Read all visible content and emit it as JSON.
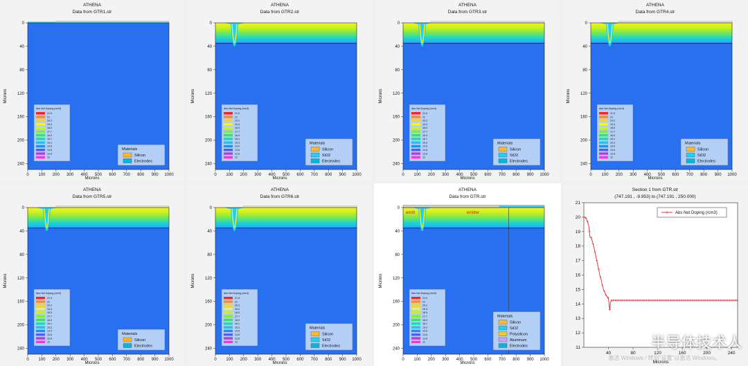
{
  "watermark": {
    "text": "半导体技术人",
    "sub": "激活 Windows / 转到\"设置\"以激活 Windows。"
  },
  "colors": {
    "bg": "#2970f0",
    "oxide": "#23d0f2",
    "electrode": "#0ab6d8",
    "legend_bg": "#b4cff5"
  },
  "doping_legend": {
    "title": "Abs Net Doping (/cm3)",
    "levels": [
      "21.9",
      "21",
      "20.2",
      "19.4",
      "18.5",
      "17.7",
      "16.9",
      "16.1",
      "15.3",
      "14.5",
      "13.6",
      "12.8",
      "12"
    ],
    "colors": [
      "#ff2020",
      "#ff8a1e",
      "#ffd21e",
      "#f6f51e",
      "#c9f21e",
      "#82ee32",
      "#32e468",
      "#1ed8b8",
      "#1ec4ea",
      "#1e92f0",
      "#5a5af0",
      "#b43cd8",
      "#ff32d8"
    ]
  },
  "contour_panels": [
    {
      "id": "gtr1",
      "heading": "ATHENA",
      "subtitle": "Data from GTR1.str",
      "xlabel": "Microns",
      "ylabel": "Microns",
      "xticks": [
        0,
        100,
        200,
        300,
        400,
        500,
        600,
        700,
        800,
        900,
        1000
      ],
      "yticks": [
        0,
        40,
        80,
        120,
        160,
        200,
        240
      ],
      "xlim": [
        0,
        1000
      ],
      "ylim": [
        0,
        250
      ],
      "layer": "none",
      "trench": false,
      "electrodes": [
        "thin"
      ],
      "materials_title": "Materials",
      "materials": [
        {
          "label": "Silicon",
          "color": "#ffb82a"
        },
        {
          "label": "Electrodes",
          "color": "#0ab6d8"
        }
      ],
      "annotations": []
    },
    {
      "id": "gtr2",
      "heading": "ATHENA",
      "subtitle": "Data from GTR2.str",
      "xlabel": "Microns",
      "ylabel": "Microns",
      "xticks": [
        0,
        100,
        200,
        300,
        400,
        500,
        600,
        700,
        800,
        900,
        1000
      ],
      "yticks": [
        0,
        40,
        80,
        120,
        160,
        200,
        240
      ],
      "xlim": [
        0,
        1000
      ],
      "ylim": [
        0,
        250
      ],
      "layer": "deep",
      "trench": true,
      "electrodes": [],
      "materials_title": "Materials",
      "materials": [
        {
          "label": "Silicon",
          "color": "#ffb82a"
        },
        {
          "label": "SiO2",
          "color": "#23d0f2"
        },
        {
          "label": "Electrodes",
          "color": "#0ab6d8"
        }
      ],
      "annotations": []
    },
    {
      "id": "gtr3",
      "heading": "ATHENA",
      "subtitle": "Data from GTR3.str",
      "xlabel": "Microns",
      "ylabel": "Microns",
      "xticks": [
        0,
        100,
        200,
        300,
        400,
        500,
        600,
        700,
        800,
        900,
        1000
      ],
      "yticks": [
        0,
        40,
        80,
        120,
        160,
        200,
        240
      ],
      "xlim": [
        0,
        1000
      ],
      "ylim": [
        0,
        250
      ],
      "layer": "deep",
      "trench": true,
      "electrodes": [
        "thin"
      ],
      "materials_title": "Materials",
      "materials": [
        {
          "label": "Silicon",
          "color": "#ffb82a"
        },
        {
          "label": "SiO2",
          "color": "#23d0f2"
        },
        {
          "label": "Electrodes",
          "color": "#0ab6d8"
        }
      ],
      "annotations": []
    },
    {
      "id": "gtr4",
      "heading": "ATHENA",
      "subtitle": "Data from GTR4.str",
      "xlabel": "Microns",
      "ylabel": "Microns",
      "xticks": [
        0,
        100,
        200,
        300,
        400,
        500,
        600,
        700,
        800,
        900,
        1000
      ],
      "yticks": [
        0,
        40,
        80,
        120,
        160,
        200,
        240
      ],
      "xlim": [
        0,
        1000
      ],
      "ylim": [
        0,
        250
      ],
      "layer": "deep",
      "trench": true,
      "electrodes": [
        "thin"
      ],
      "materials_title": "Materials",
      "materials": [
        {
          "label": "Silicon",
          "color": "#ffb82a"
        },
        {
          "label": "SiO2",
          "color": "#23d0f2"
        },
        {
          "label": "Electrodes",
          "color": "#0ab6d8"
        }
      ],
      "annotations": []
    },
    {
      "id": "gtr5",
      "heading": "ATHENA",
      "subtitle": "Data from GTR5.str",
      "xlabel": "Microns",
      "ylabel": "Microns",
      "xticks": [
        0,
        100,
        200,
        300,
        400,
        500,
        600,
        700,
        800,
        900,
        1000
      ],
      "yticks": [
        0,
        40,
        80,
        120,
        160,
        200,
        240
      ],
      "xlim": [
        0,
        1000
      ],
      "ylim": [
        0,
        250
      ],
      "layer": "deep",
      "trench": true,
      "electrodes": [
        "thin"
      ],
      "materials_title": "Materials",
      "materials": [
        {
          "label": "Silicon",
          "color": "#ffb82a"
        },
        {
          "label": "Electrodes",
          "color": "#0ab6d8"
        }
      ],
      "annotations": []
    },
    {
      "id": "gtr6",
      "heading": "ATHENA",
      "subtitle": "Data from GTR6.str",
      "xlabel": "Microns",
      "ylabel": "Microns",
      "xticks": [
        0,
        100,
        200,
        300,
        400,
        500,
        600,
        700,
        800,
        900,
        1000
      ],
      "yticks": [
        0,
        40,
        80,
        120,
        160,
        200,
        240
      ],
      "xlim": [
        0,
        1000
      ],
      "ylim": [
        0,
        250
      ],
      "layer": "deep",
      "trench": true,
      "electrodes": [
        "thin"
      ],
      "materials_title": "Materials",
      "materials": [
        {
          "label": "Silicon",
          "color": "#ffb82a"
        },
        {
          "label": "SiO2",
          "color": "#23d0f2"
        },
        {
          "label": "Electrodes",
          "color": "#0ab6d8"
        }
      ],
      "annotations": []
    },
    {
      "id": "gtr",
      "heading": "ATHENA",
      "subtitle": "Data from GTR.str",
      "xlabel": "Microns",
      "ylabel": "Microns",
      "xticks": [
        0,
        100,
        200,
        300,
        400,
        500,
        600,
        700,
        800,
        900,
        1000
      ],
      "yticks": [
        0,
        40,
        80,
        120,
        160,
        200,
        240
      ],
      "xlim": [
        0,
        1000
      ],
      "ylim": [
        0,
        250
      ],
      "layer": "deep",
      "trench": true,
      "electrodes": [
        "thick"
      ],
      "materials_title": "Materials",
      "materials": [
        {
          "label": "Silicon",
          "color": "#ffb82a"
        },
        {
          "label": "SiO2",
          "color": "#23d0f2"
        },
        {
          "label": "Polysilicon",
          "color": "#f2c92a"
        },
        {
          "label": "Aluminum",
          "color": "#c8a2ff"
        },
        {
          "label": "Electrodes",
          "color": "#0ab6d8"
        }
      ],
      "annotations": [
        {
          "text": "emitt",
          "x": 20,
          "y": 6
        },
        {
          "text": "emitter",
          "x": 450,
          "y": 6
        }
      ],
      "cutline_x": 747
    }
  ],
  "chart_data": {
    "type": "line",
    "title": "Section 1 from GTR.str",
    "subtitle": "(747.191 , -9.953) to (747.191 , 250.000)",
    "xlabel": "Microns",
    "ylabel": "",
    "xlim": [
      0,
      250
    ],
    "ylim": [
      11,
      21
    ],
    "xticks": [
      40,
      80,
      120,
      160,
      200,
      240
    ],
    "xtick_labels": [
      "40",
      "80",
      "120",
      "160",
      "200",
      "240"
    ],
    "yticks": [
      11,
      12,
      13,
      14,
      15,
      16,
      17,
      18,
      19,
      20,
      21
    ],
    "ytick_labels": [
      "11",
      "12",
      "13",
      "14",
      "15",
      "16",
      "17",
      "18",
      "19",
      "20",
      "21"
    ],
    "legend": "top-right",
    "series": [
      {
        "name": "Abs Net Doping (/cm3)",
        "color": "#e8202a",
        "x": [
          0,
          2,
          4,
          6,
          8,
          10,
          12,
          14,
          16,
          18,
          20,
          22,
          24,
          26,
          28,
          30,
          32,
          34,
          36,
          38,
          40,
          41,
          42,
          43,
          44,
          45,
          46,
          48,
          50,
          60,
          80,
          100,
          120,
          140,
          160,
          180,
          200,
          220,
          240,
          250
        ],
        "y": [
          20.0,
          20.0,
          19.9,
          19.7,
          19.4,
          18.6,
          18.6,
          18.3,
          18.0,
          17.6,
          17.2,
          16.8,
          16.4,
          16.0,
          15.7,
          15.3,
          15.0,
          14.8,
          14.6,
          14.5,
          14.4,
          14.0,
          13.6,
          14.0,
          14.2,
          14.25,
          14.25,
          14.25,
          14.25,
          14.25,
          14.25,
          14.25,
          14.25,
          14.25,
          14.25,
          14.25,
          14.25,
          14.25,
          14.25,
          14.25
        ]
      }
    ]
  }
}
